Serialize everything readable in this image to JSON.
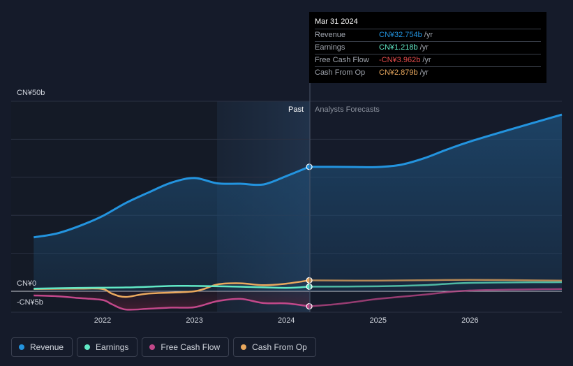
{
  "chart_data": {
    "type": "line",
    "y_axis": {
      "top_label": "CN¥50b",
      "zero_label": "CN¥0",
      "bottom_label": "-CN¥5b",
      "ylim": [
        -5,
        50
      ]
    },
    "x_axis": {
      "ticks": [
        "2022",
        "2023",
        "2024",
        "2025",
        "2026"
      ]
    },
    "periods": {
      "past_label": "Past",
      "forecast_label": "Analysts Forecasts"
    },
    "series": [
      {
        "name": "Revenue",
        "color": "#2394df",
        "past": [
          [
            2021.25,
            14.2
          ],
          [
            2021.5,
            15.2
          ],
          [
            2021.75,
            17.2
          ],
          [
            2022.0,
            19.8
          ],
          [
            2022.25,
            23.2
          ],
          [
            2022.5,
            26.0
          ],
          [
            2022.75,
            28.6
          ],
          [
            2023.0,
            29.8
          ],
          [
            2023.25,
            28.4
          ],
          [
            2023.5,
            28.3
          ],
          [
            2023.75,
            28.1
          ],
          [
            2024.0,
            30.3
          ],
          [
            2024.25,
            32.754
          ]
        ],
        "forecast": [
          [
            2024.25,
            32.754
          ],
          [
            2024.5,
            32.75
          ],
          [
            2024.75,
            32.7
          ],
          [
            2025.0,
            32.7
          ],
          [
            2025.25,
            33.3
          ],
          [
            2025.5,
            35.0
          ],
          [
            2025.75,
            37.3
          ],
          [
            2026.0,
            39.4
          ],
          [
            2026.5,
            43.0
          ],
          [
            2027.0,
            46.5
          ]
        ]
      },
      {
        "name": "Earnings",
        "color": "#61e9c6",
        "past": [
          [
            2021.25,
            0.7
          ],
          [
            2021.75,
            0.9
          ],
          [
            2022.25,
            1.0
          ],
          [
            2022.75,
            1.4
          ],
          [
            2023.0,
            1.4
          ],
          [
            2023.5,
            1.2
          ],
          [
            2024.0,
            0.9
          ],
          [
            2024.25,
            1.218
          ]
        ],
        "forecast": [
          [
            2024.25,
            1.218
          ],
          [
            2025.0,
            1.3
          ],
          [
            2025.5,
            1.6
          ],
          [
            2026.0,
            2.2
          ],
          [
            2027.0,
            2.4
          ]
        ]
      },
      {
        "name": "Free Cash Flow",
        "color": "#c2488a",
        "past": [
          [
            2021.25,
            -1.1
          ],
          [
            2021.5,
            -1.3
          ],
          [
            2021.75,
            -1.8
          ],
          [
            2022.0,
            -2.3
          ],
          [
            2022.1,
            -3.4
          ],
          [
            2022.25,
            -4.8
          ],
          [
            2022.5,
            -4.6
          ],
          [
            2022.75,
            -4.3
          ],
          [
            2023.0,
            -4.2
          ],
          [
            2023.25,
            -2.6
          ],
          [
            2023.5,
            -2.0
          ],
          [
            2023.75,
            -3.1
          ],
          [
            2024.0,
            -3.2
          ],
          [
            2024.25,
            -3.962
          ]
        ],
        "forecast": [
          [
            2024.25,
            -3.962
          ],
          [
            2024.5,
            -3.5
          ],
          [
            2024.75,
            -2.8
          ],
          [
            2025.0,
            -2.0
          ],
          [
            2025.5,
            -0.9
          ],
          [
            2026.0,
            0.2
          ],
          [
            2027.0,
            0.6
          ]
        ]
      },
      {
        "name": "Cash From Op",
        "color": "#e9a85e",
        "past": [
          [
            2021.25,
            0.6
          ],
          [
            2021.75,
            0.7
          ],
          [
            2022.0,
            0.6
          ],
          [
            2022.1,
            -0.6
          ],
          [
            2022.25,
            -1.5
          ],
          [
            2022.5,
            -0.6
          ],
          [
            2023.0,
            0.0
          ],
          [
            2023.25,
            1.8
          ],
          [
            2023.5,
            2.1
          ],
          [
            2023.75,
            1.6
          ],
          [
            2024.0,
            2.0
          ],
          [
            2024.25,
            2.879
          ]
        ],
        "forecast": [
          [
            2024.25,
            2.879
          ],
          [
            2025.0,
            2.8
          ],
          [
            2026.0,
            3.0
          ],
          [
            2027.0,
            2.8
          ]
        ]
      }
    ],
    "tooltip": {
      "date": "Mar 31 2024",
      "rows": [
        {
          "name": "Revenue",
          "value": "CN¥32.754b",
          "unit": "/yr",
          "color": "#2394df"
        },
        {
          "name": "Earnings",
          "value": "CN¥1.218b",
          "unit": "/yr",
          "color": "#61e9c6"
        },
        {
          "name": "Free Cash Flow",
          "value": "-CN¥3.962b",
          "unit": "/yr",
          "color": "#e64c4c"
        },
        {
          "name": "Cash From Op",
          "value": "CN¥2.879b",
          "unit": "/yr",
          "color": "#e9a85e"
        }
      ]
    }
  },
  "legend": [
    {
      "label": "Revenue",
      "color": "#2394df"
    },
    {
      "label": "Earnings",
      "color": "#61e9c6"
    },
    {
      "label": "Free Cash Flow",
      "color": "#c2488a"
    },
    {
      "label": "Cash From Op",
      "color": "#e9a85e"
    }
  ]
}
